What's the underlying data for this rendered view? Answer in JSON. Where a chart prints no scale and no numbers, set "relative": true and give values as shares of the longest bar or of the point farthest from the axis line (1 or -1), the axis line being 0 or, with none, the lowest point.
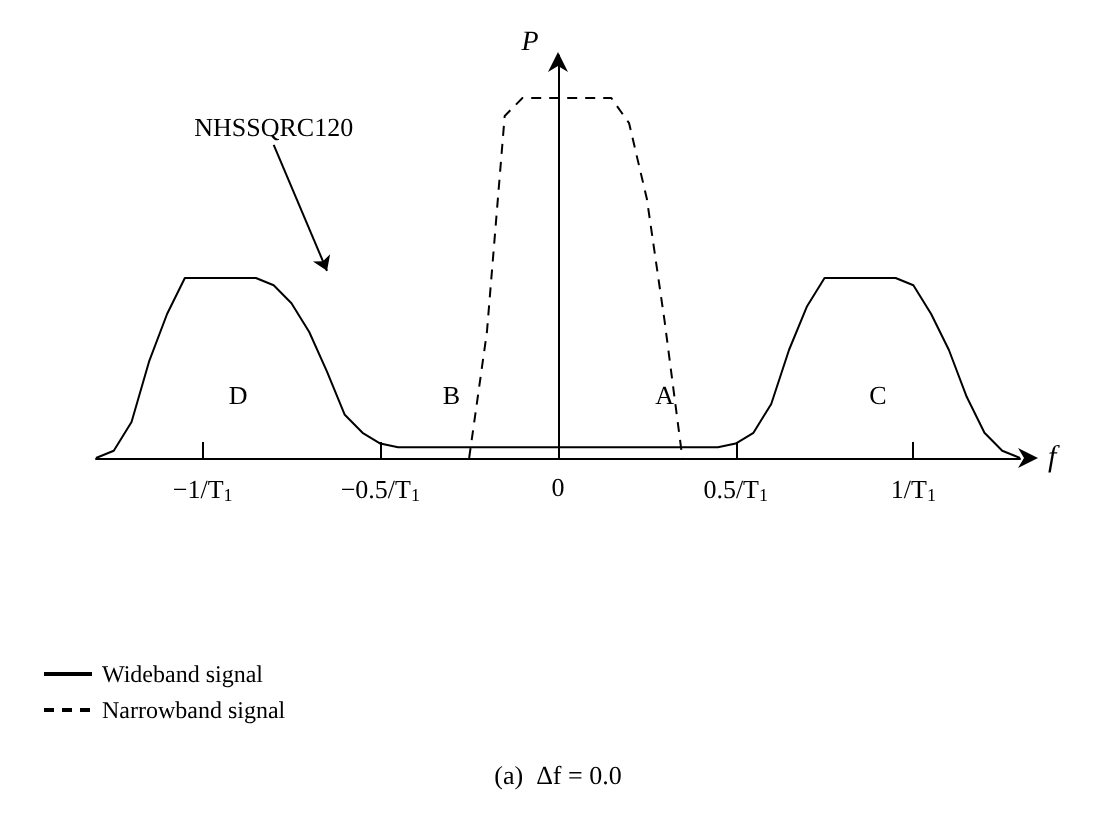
{
  "chart_data": {
    "type": "line",
    "relative": true,
    "xlabel": "f",
    "categories": [
      null,
      null,
      null,
      null,
      null,
      null,
      "−1/T$_{1}$",
      null,
      null,
      null,
      null,
      null,
      null,
      null,
      null,
      null,
      "−0.5/T$_{1}$",
      null,
      null,
      null,
      null,
      null,
      null,
      null,
      null,
      null,
      "0",
      null,
      null,
      null,
      null,
      null,
      null,
      null,
      null,
      null,
      "0.5/T$_{1}$",
      null,
      null,
      null,
      null,
      null,
      null,
      null,
      null,
      null,
      "1/T$_{1}$",
      null,
      null,
      null,
      null,
      null,
      null
    ],
    "ref_lines": [
      {
        "axis": "x",
        "value": "0",
        "label": "P"
      }
    ],
    "series": [
      {
        "name": "Wideband signal",
        "color": "#000000",
        "line_style": "solid",
        "values": [
          0,
          0.02,
          0.1,
          0.27,
          0.4,
          0.5,
          0.5,
          0.5,
          0.5,
          0.5,
          0.48,
          0.43,
          0.35,
          0.24,
          0.12,
          0.07,
          0.04,
          0.03,
          0.03,
          0.03,
          0.03,
          0.03,
          0.03,
          0.03,
          0.03,
          0.03,
          0.03,
          0.03,
          0.03,
          0.03,
          0.03,
          0.03,
          0.03,
          0.03,
          0.03,
          0.03,
          0.04,
          0.07,
          0.15,
          0.3,
          0.42,
          0.5,
          0.5,
          0.5,
          0.5,
          0.5,
          0.48,
          0.4,
          0.3,
          0.17,
          0.07,
          0.02,
          0
        ]
      },
      {
        "name": "Narrowband signal",
        "color": "#000000",
        "line_style": "dashed",
        "values": [
          null,
          null,
          null,
          null,
          null,
          null,
          null,
          null,
          null,
          null,
          null,
          null,
          null,
          null,
          null,
          null,
          null,
          null,
          null,
          null,
          null,
          0,
          0.35,
          0.95,
          1,
          1,
          1,
          1,
          1,
          1,
          0.93,
          0.72,
          0.38,
          0,
          null,
          null,
          null,
          null,
          null,
          null,
          null,
          null,
          null,
          null,
          null,
          null,
          null,
          null,
          null,
          null,
          null,
          null,
          null
        ]
      }
    ],
    "legend": "bottom left",
    "annotations": [
      "NHSSQRC120",
      "D",
      "B",
      "A",
      "C",
      "(a)  Δf = 0.0"
    ]
  }
}
